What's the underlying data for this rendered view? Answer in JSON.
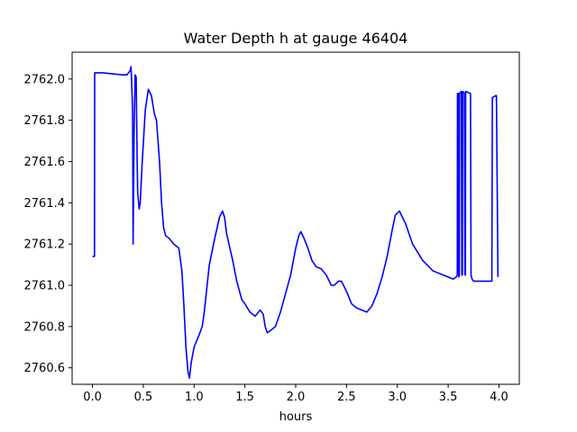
{
  "chart_data": {
    "type": "line",
    "title": "Water Depth h at gauge 46404",
    "xlabel": "hours",
    "ylabel": "",
    "xlim": [
      -0.2,
      4.2
    ],
    "ylim": [
      2760.52,
      2762.13
    ],
    "xticks": [
      0.0,
      0.5,
      1.0,
      1.5,
      2.0,
      2.5,
      3.0,
      3.5,
      4.0
    ],
    "xtick_labels": [
      "0.0",
      "0.5",
      "1.0",
      "1.5",
      "2.0",
      "2.5",
      "3.0",
      "3.5",
      "4.0"
    ],
    "yticks": [
      2760.6,
      2760.8,
      2761.0,
      2761.2,
      2761.4,
      2761.6,
      2761.8,
      2762.0
    ],
    "ytick_labels": [
      "2760.6",
      "2760.8",
      "2761.0",
      "2761.2",
      "2761.4",
      "2761.6",
      "2761.8",
      "2762.0"
    ],
    "grid": false,
    "series": [
      {
        "color": "#0000ff",
        "x": [
          0.0,
          0.02,
          0.022,
          0.1,
          0.2,
          0.3,
          0.34,
          0.37,
          0.38,
          0.395,
          0.4,
          0.41,
          0.42,
          0.43,
          0.44,
          0.445,
          0.46,
          0.47,
          0.49,
          0.52,
          0.55,
          0.58,
          0.61,
          0.63,
          0.66,
          0.68,
          0.7,
          0.72,
          0.75,
          0.8,
          0.85,
          0.88,
          0.9,
          0.92,
          0.94,
          0.955,
          0.97,
          1.0,
          1.05,
          1.08,
          1.1,
          1.15,
          1.2,
          1.25,
          1.28,
          1.3,
          1.32,
          1.38,
          1.42,
          1.47,
          1.5,
          1.55,
          1.6,
          1.65,
          1.68,
          1.7,
          1.72,
          1.75,
          1.8,
          1.85,
          1.95,
          2.0,
          2.03,
          2.05,
          2.08,
          2.12,
          2.16,
          2.2,
          2.25,
          2.3,
          2.35,
          2.38,
          2.42,
          2.45,
          2.5,
          2.55,
          2.6,
          2.65,
          2.7,
          2.75,
          2.8,
          2.85,
          2.9,
          2.95,
          2.98,
          3.02,
          3.08,
          3.15,
          3.25,
          3.35,
          3.45,
          3.55,
          3.58,
          3.59,
          3.592,
          3.6,
          3.605,
          3.61,
          3.612,
          3.63,
          3.635,
          3.64,
          3.642,
          3.66,
          3.665,
          3.67,
          3.672,
          3.72,
          3.725,
          3.73,
          3.735,
          3.75,
          3.8,
          3.9,
          3.93,
          3.935,
          3.97,
          3.975,
          3.99
        ],
        "y": [
          2761.14,
          2761.14,
          2762.03,
          2762.03,
          2762.025,
          2762.02,
          2762.02,
          2762.04,
          2762.06,
          2761.85,
          2761.2,
          2761.75,
          2762.02,
          2762.01,
          2761.6,
          2761.45,
          2761.37,
          2761.4,
          2761.6,
          2761.85,
          2761.95,
          2761.92,
          2761.83,
          2761.8,
          2761.6,
          2761.4,
          2761.28,
          2761.24,
          2761.23,
          2761.2,
          2761.18,
          2761.07,
          2760.9,
          2760.7,
          2760.58,
          2760.55,
          2760.62,
          2760.7,
          2760.76,
          2760.8,
          2760.87,
          2761.1,
          2761.22,
          2761.33,
          2761.36,
          2761.33,
          2761.25,
          2761.12,
          2761.02,
          2760.93,
          2760.91,
          2760.87,
          2760.85,
          2760.88,
          2760.86,
          2760.8,
          2760.77,
          2760.78,
          2760.8,
          2760.87,
          2761.05,
          2761.18,
          2761.24,
          2761.26,
          2761.23,
          2761.18,
          2761.12,
          2761.09,
          2761.08,
          2761.05,
          2761.0,
          2761.0,
          2761.02,
          2761.02,
          2760.97,
          2760.91,
          2760.89,
          2760.88,
          2760.87,
          2760.9,
          2760.96,
          2761.04,
          2761.14,
          2761.27,
          2761.34,
          2761.36,
          2761.3,
          2761.2,
          2761.12,
          2761.07,
          2761.05,
          2761.03,
          2761.04,
          2761.05,
          2761.93,
          2761.93,
          2761.04,
          2761.05,
          2761.93,
          2761.94,
          2761.05,
          2761.05,
          2761.94,
          2761.93,
          2761.05,
          2761.05,
          2761.94,
          2761.93,
          2761.05,
          2761.04,
          2761.03,
          2761.02,
          2761.02,
          2761.02,
          2761.02,
          2761.91,
          2761.92,
          2761.92,
          2761.04
        ]
      }
    ]
  }
}
